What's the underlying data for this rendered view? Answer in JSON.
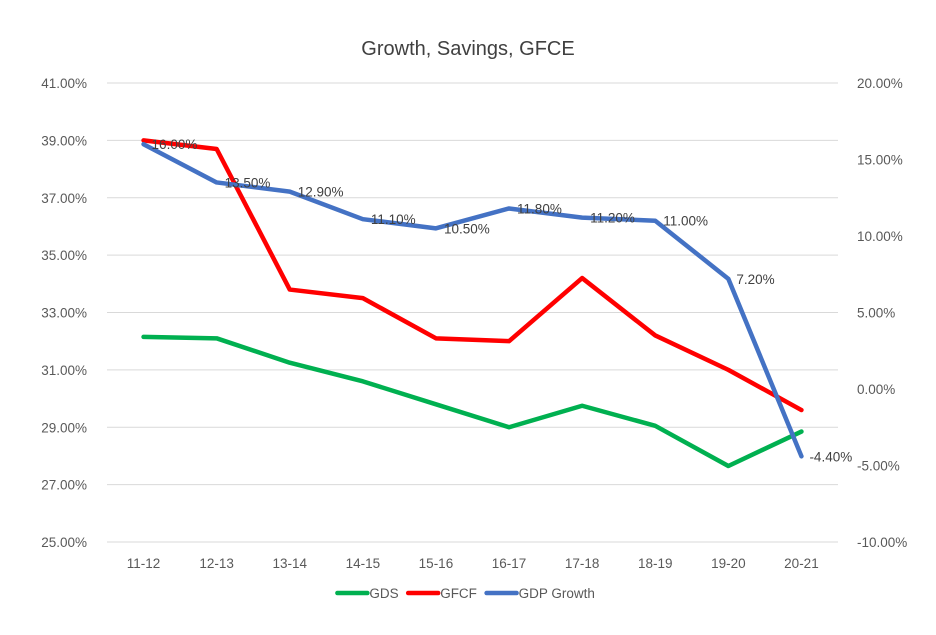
{
  "chart_data": {
    "type": "line",
    "title": "Growth, Savings, GFCE",
    "xlabel": "",
    "ylabel": "",
    "y2label": "",
    "categories": [
      "11-12",
      "12-13",
      "13-14",
      "14-15",
      "15-16",
      "16-17",
      "17-18",
      "18-19",
      "19-20",
      "20-21"
    ],
    "ylim": [
      25,
      41
    ],
    "yticks": [
      25,
      27,
      29,
      31,
      33,
      35,
      37,
      39,
      41
    ],
    "ytick_labels": [
      "25.00%",
      "27.00%",
      "29.00%",
      "31.00%",
      "33.00%",
      "35.00%",
      "37.00%",
      "39.00%",
      "41.00%"
    ],
    "y2lim": [
      -10,
      20
    ],
    "y2ticks": [
      -10,
      -5,
      0,
      5,
      10,
      15,
      20
    ],
    "y2tick_labels": [
      "-10.00%",
      "-5.00%",
      "0.00%",
      "5.00%",
      "10.00%",
      "15.00%",
      "20.00%"
    ],
    "grid": true,
    "legend_position": "bottom",
    "series": [
      {
        "name": "GDS",
        "axis": "left",
        "color": "#00B050",
        "values": [
          32.15,
          32.1,
          31.25,
          30.6,
          29.8,
          29.0,
          29.75,
          29.05,
          27.65,
          28.85
        ],
        "data_labels": null
      },
      {
        "name": "GFCF",
        "axis": "left",
        "color": "#FF0000",
        "values": [
          39.0,
          38.7,
          33.8,
          33.5,
          32.1,
          32.0,
          34.2,
          32.2,
          31.0,
          29.6
        ],
        "data_labels": null
      },
      {
        "name": "GDP Growth",
        "axis": "right",
        "color": "#4472C4",
        "values": [
          16.0,
          13.5,
          12.9,
          11.1,
          10.5,
          11.8,
          11.2,
          11.0,
          7.2,
          -4.4
        ],
        "data_labels": [
          "16.00%",
          "13.50%",
          "12.90%",
          "11.10%",
          "10.50%",
          "11.80%",
          "11.20%",
          "11.00%",
          "7.20%",
          "-4.40%"
        ]
      }
    ]
  }
}
